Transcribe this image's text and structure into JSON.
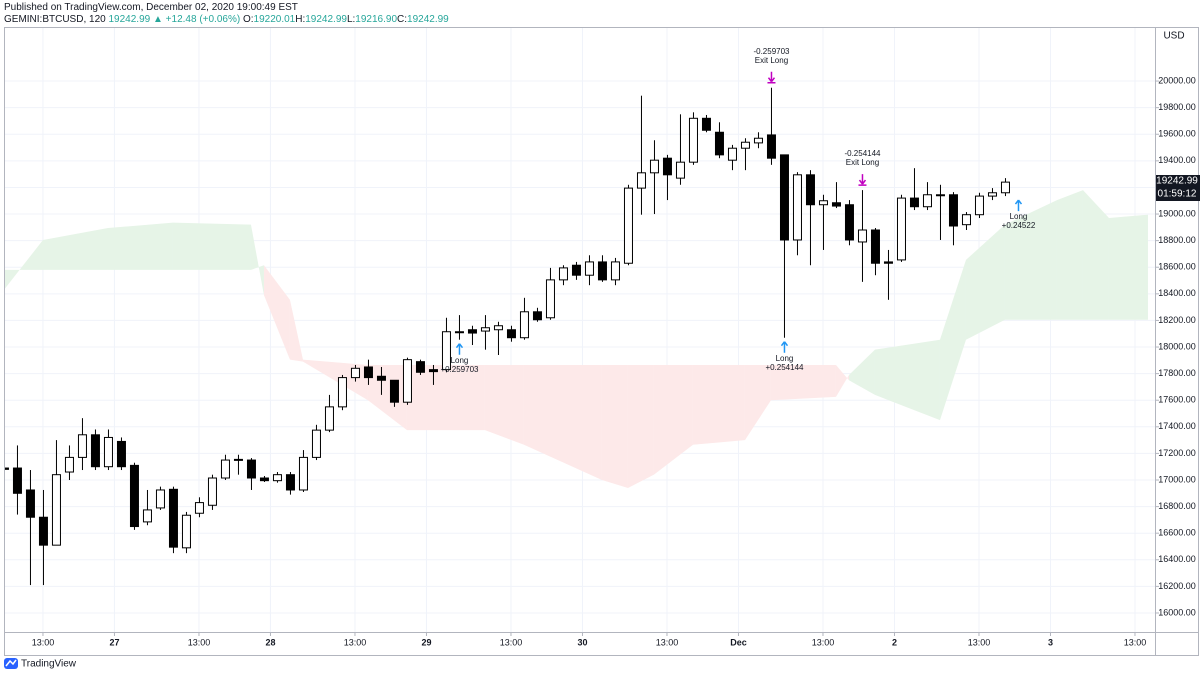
{
  "published": "Published on TradingView.com, December 02, 2020 19:00:49 EST",
  "symbol": "GEMINI:BTCUSD, 120",
  "last": "19242.99",
  "arrow": "▲",
  "change": "+12.48 (+0.06%)",
  "ohlc": [
    {
      "label": "O:",
      "value": "19220.01"
    },
    {
      "label": "H:",
      "value": "19242.99"
    },
    {
      "label": "L:",
      "value": "19216.90"
    },
    {
      "label": "C:",
      "value": "19242.99"
    }
  ],
  "brand": "TradingView",
  "chart_data": {
    "type": "candlestick",
    "currency": "USD",
    "price_label": "19242.99",
    "countdown": "01:59:12",
    "up_color": "#ffffff",
    "down_color": "#000000",
    "grid": true,
    "xlim": [
      0.08,
      88.54
    ],
    "ylim": [
      15857,
      20399
    ],
    "xticks": [
      {
        "value": 3,
        "label": "13:00"
      },
      {
        "value": 8.5,
        "label": "27"
      },
      {
        "value": 15,
        "label": "13:00"
      },
      {
        "value": 20.5,
        "label": "28"
      },
      {
        "value": 27,
        "label": "13:00"
      },
      {
        "value": 32.5,
        "label": "29"
      },
      {
        "value": 39,
        "label": "13:00"
      },
      {
        "value": 44.5,
        "label": "30"
      },
      {
        "value": 51,
        "label": "13:00"
      },
      {
        "value": 56.5,
        "label": "Dec"
      },
      {
        "value": 63,
        "label": "13:00"
      },
      {
        "value": 68.5,
        "label": "2"
      },
      {
        "value": 75,
        "label": "13:00"
      },
      {
        "value": 80.5,
        "label": "3"
      },
      {
        "value": 87,
        "label": "13:00"
      }
    ],
    "yticks": [
      {
        "value": 16000,
        "label": "16000.00"
      },
      {
        "value": 16200,
        "label": "16200.00"
      },
      {
        "value": 16400,
        "label": "16400.00"
      },
      {
        "value": 16600,
        "label": "16600.00"
      },
      {
        "value": 16800,
        "label": "16800.00"
      },
      {
        "value": 17000,
        "label": "17000.00"
      },
      {
        "value": 17200,
        "label": "17200.00"
      },
      {
        "value": 17400,
        "label": "17400.00"
      },
      {
        "value": 17600,
        "label": "17600.00"
      },
      {
        "value": 17800,
        "label": "17800.00"
      },
      {
        "value": 18000,
        "label": "18000.00"
      },
      {
        "value": 18200,
        "label": "18200.00"
      },
      {
        "value": 18400,
        "label": "18400.00"
      },
      {
        "value": 18600,
        "label": "18600.00"
      },
      {
        "value": 18800,
        "label": "18800.00"
      },
      {
        "value": 19000,
        "label": "19000.00"
      },
      {
        "value": 19200,
        "label": "19200.00"
      },
      {
        "value": 19400,
        "label": "19400.00"
      },
      {
        "value": 19600,
        "label": "19600.00"
      },
      {
        "value": 19800,
        "label": "19800.00"
      },
      {
        "value": 20000,
        "label": "20000.00"
      }
    ],
    "open": [
      17090,
      17090,
      16925,
      16720,
      16510,
      17060,
      17170,
      17340,
      17100,
      17290,
      17110,
      16685,
      16790,
      16930,
      16490,
      16750,
      16810,
      17015,
      17150,
      17150,
      17015,
      16995,
      17040,
      16925,
      17170,
      17375,
      17550,
      17770,
      17850,
      17780,
      17750,
      17585,
      17890,
      17830,
      17830,
      18115,
      18130,
      18120,
      18130,
      18130,
      18070,
      18265,
      18220,
      18505,
      18615,
      18540,
      18640,
      18505,
      18630,
      19195,
      19310,
      19420,
      19270,
      19390,
      19720,
      19615,
      19405,
      19495,
      19535,
      19595,
      19445,
      18805,
      19295,
      19070,
      19085,
      19070,
      18790,
      18880,
      18640,
      18655,
      19120,
      19055,
      19145,
      19145,
      18920,
      18995,
      19135,
      19160
    ],
    "high": [
      17110,
      17260,
      17075,
      16925,
      17300,
      17260,
      17465,
      17380,
      17380,
      17320,
      17130,
      16925,
      16950,
      16950,
      16760,
      16870,
      17040,
      17190,
      17190,
      17165,
      17030,
      17060,
      17060,
      17225,
      17415,
      17640,
      17790,
      17865,
      17905,
      17850,
      17750,
      17920,
      17905,
      17865,
      18220,
      18240,
      18160,
      18240,
      18190,
      18160,
      18370,
      18295,
      18595,
      18615,
      18640,
      18690,
      18690,
      18670,
      19220,
      19890,
      19555,
      19445,
      19750,
      19765,
      19745,
      19690,
      19520,
      19570,
      19615,
      19950,
      19445,
      19315,
      19330,
      19145,
      19240,
      19105,
      19180,
      18895,
      18730,
      19145,
      19345,
      19240,
      19220,
      19165,
      19015,
      19160,
      19195,
      19270
    ],
    "low": [
      17060,
      16740,
      16210,
      16210,
      16510,
      17000,
      17075,
      17075,
      17075,
      17075,
      16625,
      16660,
      16775,
      16450,
      16450,
      16720,
      16775,
      17000,
      17040,
      16925,
      16985,
      16980,
      16890,
      16910,
      17150,
      17360,
      17525,
      17740,
      17715,
      17640,
      17550,
      17565,
      17790,
      17715,
      17810,
      18055,
      18015,
      17980,
      17940,
      18040,
      18055,
      18190,
      18205,
      18465,
      18505,
      18465,
      18490,
      18465,
      18615,
      18995,
      19000,
      19105,
      19220,
      19370,
      19615,
      19420,
      19330,
      19330,
      19495,
      19370,
      18070,
      18690,
      18615,
      18730,
      19045,
      18765,
      18490,
      18540,
      18355,
      18640,
      19030,
      19030,
      18805,
      18765,
      18880,
      18970,
      19105,
      19135
    ],
    "close": [
      17080,
      16900,
      16720,
      16510,
      17040,
      17170,
      17340,
      17100,
      17320,
      17100,
      16650,
      16775,
      16925,
      16495,
      16735,
      16830,
      17015,
      17150,
      17155,
      17015,
      16995,
      17040,
      16925,
      17170,
      17375,
      17550,
      17770,
      17840,
      17770,
      17750,
      17585,
      17905,
      17810,
      17815,
      18115,
      18110,
      18105,
      18145,
      18160,
      18070,
      18265,
      18205,
      18505,
      18595,
      18540,
      18640,
      18505,
      18640,
      19195,
      19310,
      19405,
      19295,
      19390,
      19720,
      19630,
      19445,
      19495,
      19540,
      19570,
      19420,
      18805,
      19295,
      19070,
      19100,
      19060,
      18805,
      18880,
      18630,
      18630,
      19120,
      19055,
      19145,
      19140,
      18910,
      18995,
      19135,
      19160,
      19240
    ],
    "cloud": {
      "up_color": "#e6f4e7",
      "down_color": "#fde9e9",
      "x": [
        0,
        3,
        8,
        13,
        19,
        20,
        22,
        23,
        28,
        31,
        37,
        40,
        46,
        48,
        50,
        53,
        57,
        59,
        64,
        65,
        67,
        72,
        74,
        77,
        81,
        83,
        85,
        88
      ],
      "span_a": [
        18430,
        18805,
        18895,
        18935,
        18920,
        18390,
        17905,
        17890,
        17600,
        17375,
        17375,
        17265,
        17000,
        16940,
        17040,
        17265,
        17300,
        17600,
        17625,
        17790,
        17980,
        18055,
        18655,
        18920,
        19105,
        19180,
        18970,
        18995
      ],
      "span_b": [
        18580,
        18580,
        18580,
        18580,
        18580,
        18615,
        18355,
        17905,
        17865,
        17865,
        17865,
        17865,
        17865,
        17865,
        17865,
        17865,
        17865,
        17865,
        17865,
        17750,
        17640,
        17450,
        18055,
        18205,
        18205,
        18205,
        18205,
        18205
      ]
    },
    "signals": [
      {
        "kind": "long",
        "bar": 35,
        "text": [
          "Long",
          "+0.259703"
        ],
        "color": "#2196f3"
      },
      {
        "kind": "exit",
        "bar": 59,
        "text": [
          "-0.259703",
          "Exit Long"
        ],
        "color": "#c000c0"
      },
      {
        "kind": "long",
        "bar": 60,
        "text": [
          "Long",
          "+0.254144"
        ],
        "color": "#2196f3"
      },
      {
        "kind": "exit",
        "bar": 66,
        "text": [
          "-0.254144",
          "Exit Long"
        ],
        "color": "#c000c0"
      },
      {
        "kind": "long",
        "bar": 78,
        "text": [
          "Long",
          "+0.24522"
        ],
        "color": "#2196f3"
      }
    ]
  }
}
